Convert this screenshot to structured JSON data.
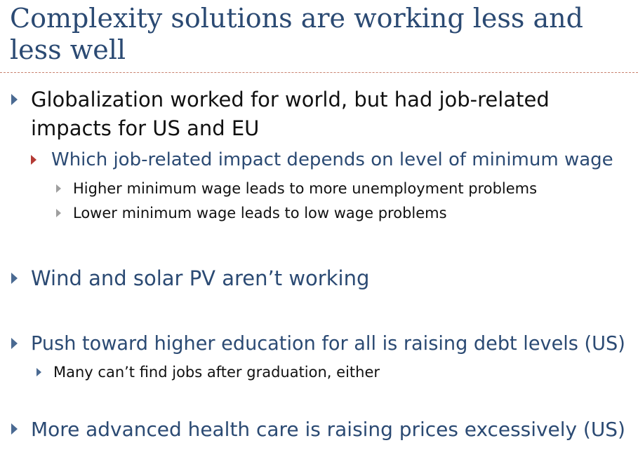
{
  "slide": {
    "title_line1": "Complexity solutions are working less and",
    "title_line2": "less well",
    "bullets": {
      "globalization_line1": "Globalization worked for world, but had job-related",
      "globalization_line2": "impacts for US and EU",
      "job_impact": "Which job-related impact depends on level of minimum wage",
      "higher_wage": "Higher minimum wage leads to more unemployment problems",
      "lower_wage": "Lower minimum wage leads to low wage problems",
      "wind_solar": "Wind and solar PV aren’t working",
      "education": "Push toward higher education for all is raising debt levels (US)",
      "education_sub": "Many can’t find jobs after graduation, either",
      "health_care": "More advanced health care is raising prices excessively (US)"
    },
    "colors": {
      "title": "#2b4a73",
      "blue_text": "#2b4a73",
      "black_text": "#111111",
      "level1_arrow": "#4a6a92",
      "level2_arrow": "#b43b35",
      "level3_arrow": "#9f9f9f",
      "rule": "#c9826f"
    }
  }
}
